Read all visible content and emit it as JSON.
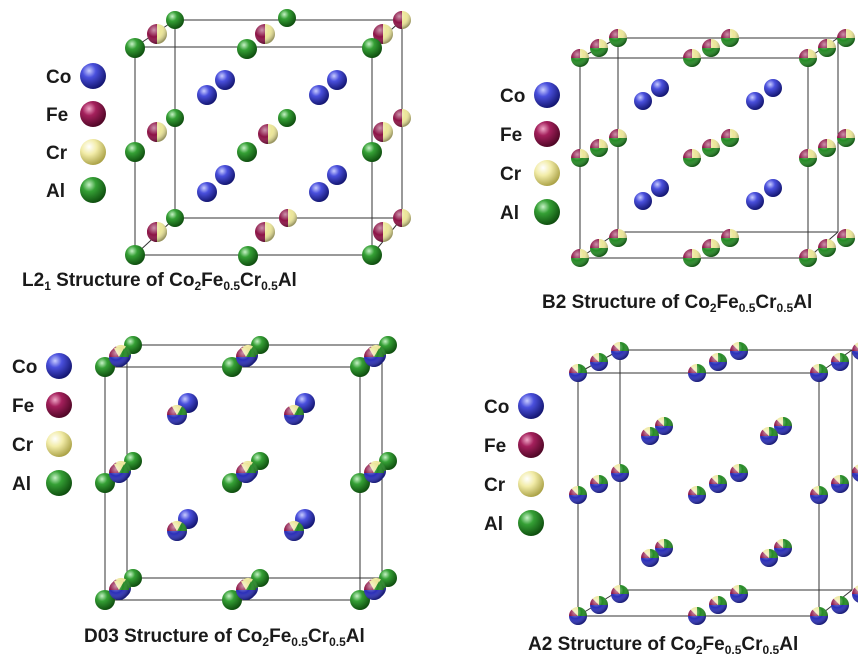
{
  "legend_labels": [
    "Co",
    "Fe",
    "Cr",
    "Al"
  ],
  "colors": {
    "co": "#2a2eb8",
    "fe": "#8c1245",
    "cr": "#ece698",
    "al": "#248a24"
  },
  "panels": [
    {
      "id": "l21",
      "prefix": "L2",
      "prefix_sub": "1",
      "text": " Structure of Co",
      "co_sub": "2",
      "fe": "Fe",
      "fe_sub": "0.5",
      "cr": "Cr",
      "cr_sub": "0.5",
      "al": "Al"
    },
    {
      "id": "b2",
      "prefix": "B2",
      "prefix_sub": "",
      "text": " Structure of Co",
      "co_sub": "2",
      "fe": "Fe",
      "fe_sub": "0.5",
      "cr": "Cr",
      "cr_sub": "0.5",
      "al": "Al"
    },
    {
      "id": "d03",
      "prefix": "D03",
      "prefix_sub": "",
      "text": " Structure of Co",
      "co_sub": "2",
      "fe": "Fe",
      "fe_sub": "0.5",
      "cr": "Cr",
      "cr_sub": "0.5",
      "al": "Al"
    },
    {
      "id": "a2",
      "prefix": "A2",
      "prefix_sub": "",
      "text": " Structure of Co",
      "co_sub": "2",
      "fe": "Fe",
      "fe_sub": "0.5",
      "cr": "Cr",
      "cr_sub": "0.5",
      "al": "Al"
    }
  ]
}
